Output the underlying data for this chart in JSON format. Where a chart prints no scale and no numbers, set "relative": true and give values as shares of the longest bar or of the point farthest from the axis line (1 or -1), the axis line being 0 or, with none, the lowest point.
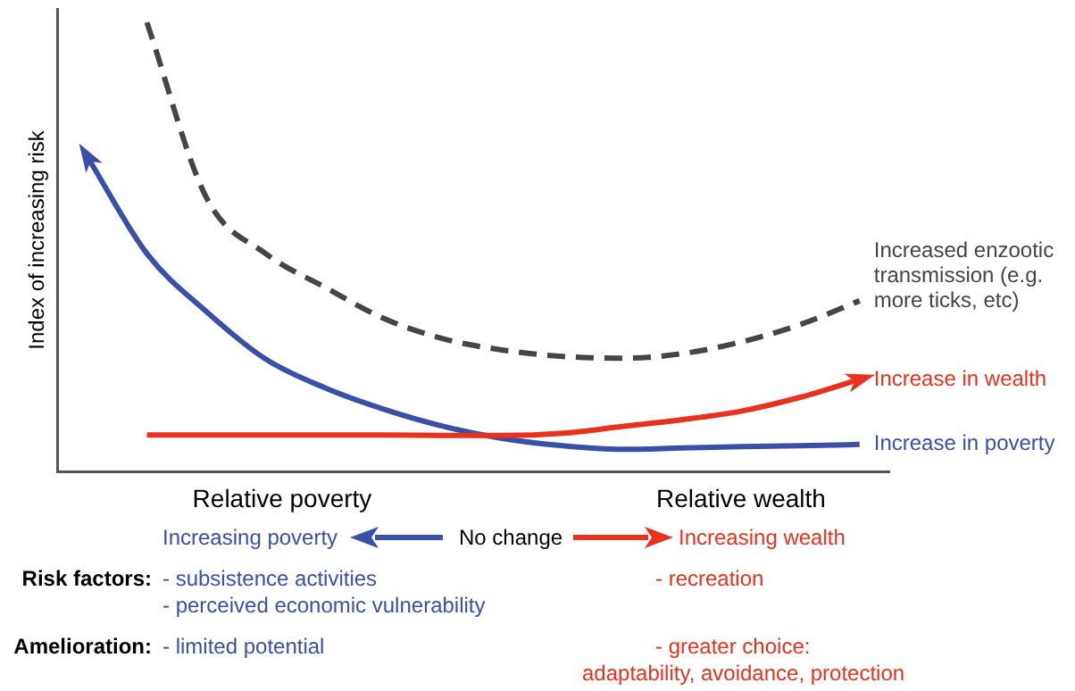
{
  "chart_data": {
    "type": "line",
    "relative": true,
    "ylabel": "Index of increasing risk",
    "legend": false,
    "grid": false,
    "tick_labels": false,
    "marker": "none",
    "categories": [
      null,
      null,
      null,
      null,
      null,
      null,
      null,
      null,
      null,
      null,
      null,
      null,
      null,
      null
    ],
    "series": [
      {
        "name": "Increased enzootic transmission (e.g. more ticks, etc)",
        "color": "#454545",
        "line_style": "dashed",
        "values": [
          null,
          1,
          0.61,
          0.485,
          0.41,
          0.34,
          0.295,
          0.27,
          0.256,
          0.252,
          0.262,
          0.288,
          0.327,
          0.38
        ]
      },
      {
        "name": "Increase in wealth",
        "color": "#e8321e",
        "line_style": "solid",
        "values": [
          null,
          0.081,
          0.081,
          0.081,
          0.081,
          0.081,
          0.08,
          0.08,
          0.085,
          0.1,
          0.115,
          0.134,
          0.165,
          0.205
        ]
      },
      {
        "name": "Increase in poverty",
        "color": "#3a4fa8",
        "line_style": "solid",
        "values": [
          0.7,
          0.485,
          0.356,
          0.25,
          0.186,
          0.138,
          0.1,
          0.073,
          0.057,
          0.049,
          0.052,
          0.055,
          0.057,
          0.06
        ]
      }
    ],
    "annotations": [
      "Relative poverty",
      "Relative wealth",
      "Increasing poverty",
      "No change",
      "Increasing wealth",
      "Risk factors:",
      "- subsistence activities",
      "- perceived economic vulnerability",
      "- recreation",
      "Amelioration:",
      "- limited potential",
      "- greater choice:",
      "adaptability, avoidance, protection"
    ]
  }
}
